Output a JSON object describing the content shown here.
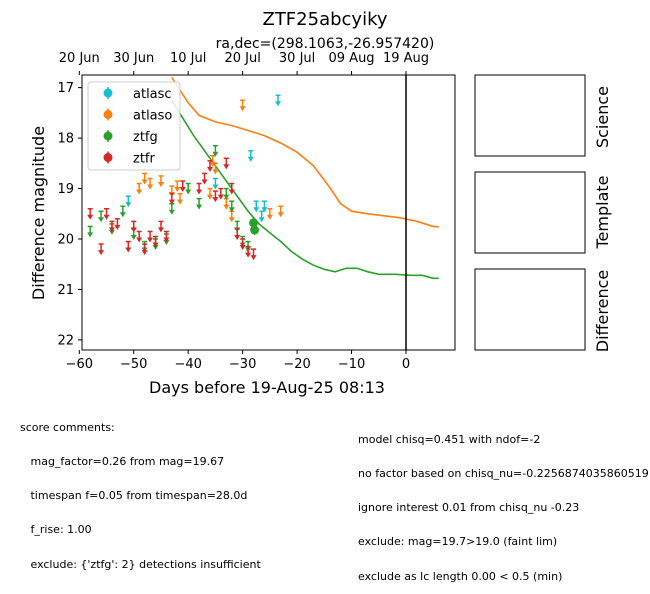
{
  "chart_data": {
    "type": "scatter",
    "title": "ZTF25abcyiky",
    "subtitle": "ra,dec=(298.1063,-26.957420)",
    "xlabel": "Days before 19-Aug-25 08:13",
    "ylabel": "Difference magnitude",
    "xlim": [
      -59.5,
      9
    ],
    "ylim": [
      22.2,
      16.75
    ],
    "y_inverted": true,
    "xticks": [
      -60,
      -50,
      -40,
      -30,
      -20,
      -10,
      0
    ],
    "yticks": [
      17,
      18,
      19,
      20,
      21,
      22
    ],
    "top_axis_ticks": [
      {
        "label": "20 Jun",
        "x": -60
      },
      {
        "label": "30 Jun",
        "x": -50
      },
      {
        "label": "10 Jul",
        "x": -40
      },
      {
        "label": "20 Jul",
        "x": -30
      },
      {
        "label": "30 Jul",
        "x": -20
      },
      {
        "label": "09 Aug",
        "x": -10
      },
      {
        "label": "19 Aug",
        "x": 0
      }
    ],
    "vline_x": 0,
    "grid": false,
    "legend_position": "upper-left",
    "series": [
      {
        "name": "atlasc",
        "color": "#17becf",
        "kind": "upper_limit",
        "points": [
          [
            -51,
            19.25
          ],
          [
            -35,
            18.9
          ],
          [
            -28.5,
            18.35
          ],
          [
            -27.5,
            19.35
          ],
          [
            -26.5,
            19.55
          ],
          [
            -26,
            19.35
          ],
          [
            -23.5,
            17.25
          ]
        ]
      },
      {
        "name": "atlaso",
        "color": "#ff7f0e",
        "kind": "upper_limit",
        "points": [
          [
            -49,
            19.0
          ],
          [
            -48,
            18.8
          ],
          [
            -47,
            18.9
          ],
          [
            -45,
            18.85
          ],
          [
            -43,
            19.05
          ],
          [
            -42,
            18.95
          ],
          [
            -41.5,
            19.2
          ],
          [
            -36,
            19.1
          ],
          [
            -35.5,
            18.45
          ],
          [
            -35,
            18.6
          ],
          [
            -33,
            19.3
          ],
          [
            -32,
            19.55
          ],
          [
            -30,
            17.35
          ],
          [
            -25,
            19.5
          ],
          [
            -23,
            19.45
          ]
        ]
      },
      {
        "name": "ztfg",
        "color": "#2ca02c",
        "kind": "upper_limit",
        "points": [
          [
            -58,
            19.85
          ],
          [
            -56,
            19.55
          ],
          [
            -54,
            19.8
          ],
          [
            -52,
            19.45
          ],
          [
            -50,
            19.9
          ],
          [
            -48,
            20.15
          ],
          [
            -46,
            20.1
          ],
          [
            -44,
            20.0
          ],
          [
            -43,
            19.4
          ],
          [
            -40,
            19.0
          ],
          [
            -38,
            19.3
          ],
          [
            -35,
            18.25
          ],
          [
            -33,
            19.1
          ],
          [
            -32,
            19.35
          ],
          [
            -31,
            19.75
          ],
          [
            -30,
            20.05
          ],
          [
            -29,
            20.15
          ]
        ]
      },
      {
        "name": "ztfg detections",
        "color": "#2ca02c",
        "kind": "detection",
        "points": [
          [
            -28,
            19.68,
            0.1
          ],
          [
            -27.8,
            19.82,
            0.1
          ]
        ]
      },
      {
        "name": "ztfr",
        "color": "#d62728",
        "kind": "upper_limit",
        "points": [
          [
            -58,
            19.5
          ],
          [
            -56,
            20.2
          ],
          [
            -55,
            19.5
          ],
          [
            -54,
            19.75
          ],
          [
            -53,
            19.7
          ],
          [
            -51,
            20.15
          ],
          [
            -50,
            19.75
          ],
          [
            -49,
            19.95
          ],
          [
            -48,
            20.2
          ],
          [
            -47,
            19.95
          ],
          [
            -46,
            20.05
          ],
          [
            -45,
            19.75
          ],
          [
            -44,
            19.95
          ],
          [
            -43,
            19.2
          ],
          [
            -41,
            18.95
          ],
          [
            -38,
            19.0
          ],
          [
            -37,
            18.8
          ],
          [
            -36,
            18.55
          ],
          [
            -35,
            19.15
          ],
          [
            -34,
            19.1
          ],
          [
            -33,
            18.5
          ],
          [
            -32,
            19.0
          ],
          [
            -31,
            19.9
          ],
          [
            -30,
            20.1
          ],
          [
            -29,
            20.25
          ],
          [
            -28,
            20.3
          ]
        ]
      }
    ],
    "models": [
      {
        "band": "atlaso",
        "color": "#ff7f0e",
        "points": [
          [
            -43,
            16.8
          ],
          [
            -40,
            17.3
          ],
          [
            -38,
            17.55
          ],
          [
            -35,
            17.68
          ],
          [
            -32,
            17.75
          ],
          [
            -29,
            17.85
          ],
          [
            -26,
            17.95
          ],
          [
            -23,
            18.1
          ],
          [
            -20,
            18.28
          ],
          [
            -17,
            18.55
          ],
          [
            -14,
            18.98
          ],
          [
            -12,
            19.3
          ],
          [
            -10,
            19.45
          ],
          [
            -7,
            19.5
          ],
          [
            -4,
            19.54
          ],
          [
            -1,
            19.58
          ],
          [
            2,
            19.65
          ],
          [
            5,
            19.75
          ],
          [
            6,
            19.76
          ]
        ]
      },
      {
        "band": "ztfg",
        "color": "#2ca02c",
        "points": [
          [
            -43,
            17.25
          ],
          [
            -41,
            17.6
          ],
          [
            -39,
            17.95
          ],
          [
            -37,
            18.25
          ],
          [
            -35,
            18.55
          ],
          [
            -33,
            18.85
          ],
          [
            -31,
            19.15
          ],
          [
            -29,
            19.45
          ],
          [
            -27,
            19.7
          ],
          [
            -25,
            19.88
          ],
          [
            -23,
            20.05
          ],
          [
            -21,
            20.25
          ],
          [
            -19,
            20.4
          ],
          [
            -17,
            20.52
          ],
          [
            -15,
            20.6
          ],
          [
            -13,
            20.65
          ],
          [
            -11,
            20.58
          ],
          [
            -9,
            20.58
          ],
          [
            -7,
            20.65
          ],
          [
            -5,
            20.7
          ],
          [
            -2,
            20.7
          ],
          [
            1,
            20.72
          ],
          [
            3,
            20.72
          ],
          [
            5,
            20.78
          ],
          [
            6,
            20.78
          ]
        ]
      }
    ]
  },
  "panels": {
    "science": "Science",
    "template": "Template",
    "difference": "Difference"
  },
  "comments": {
    "left": [
      "score comments:",
      "   mag_factor=0.26 from mag=19.67",
      "   timespan f=0.05 from timespan=28.0d",
      "   f_rise: 1.00",
      "   exclude: {'ztfg': 2} detections insufficient"
    ],
    "right": [
      "model chisq=0.451 with ndof=-2",
      "no factor based on chisq_nu=-0.2256874035860519",
      "ignore interest 0.01 from chisq_nu -0.23",
      "exclude: mag=19.7>19.0 (faint lim)",
      "exclude as lc length 0.00 < 0.5 (min)"
    ]
  }
}
